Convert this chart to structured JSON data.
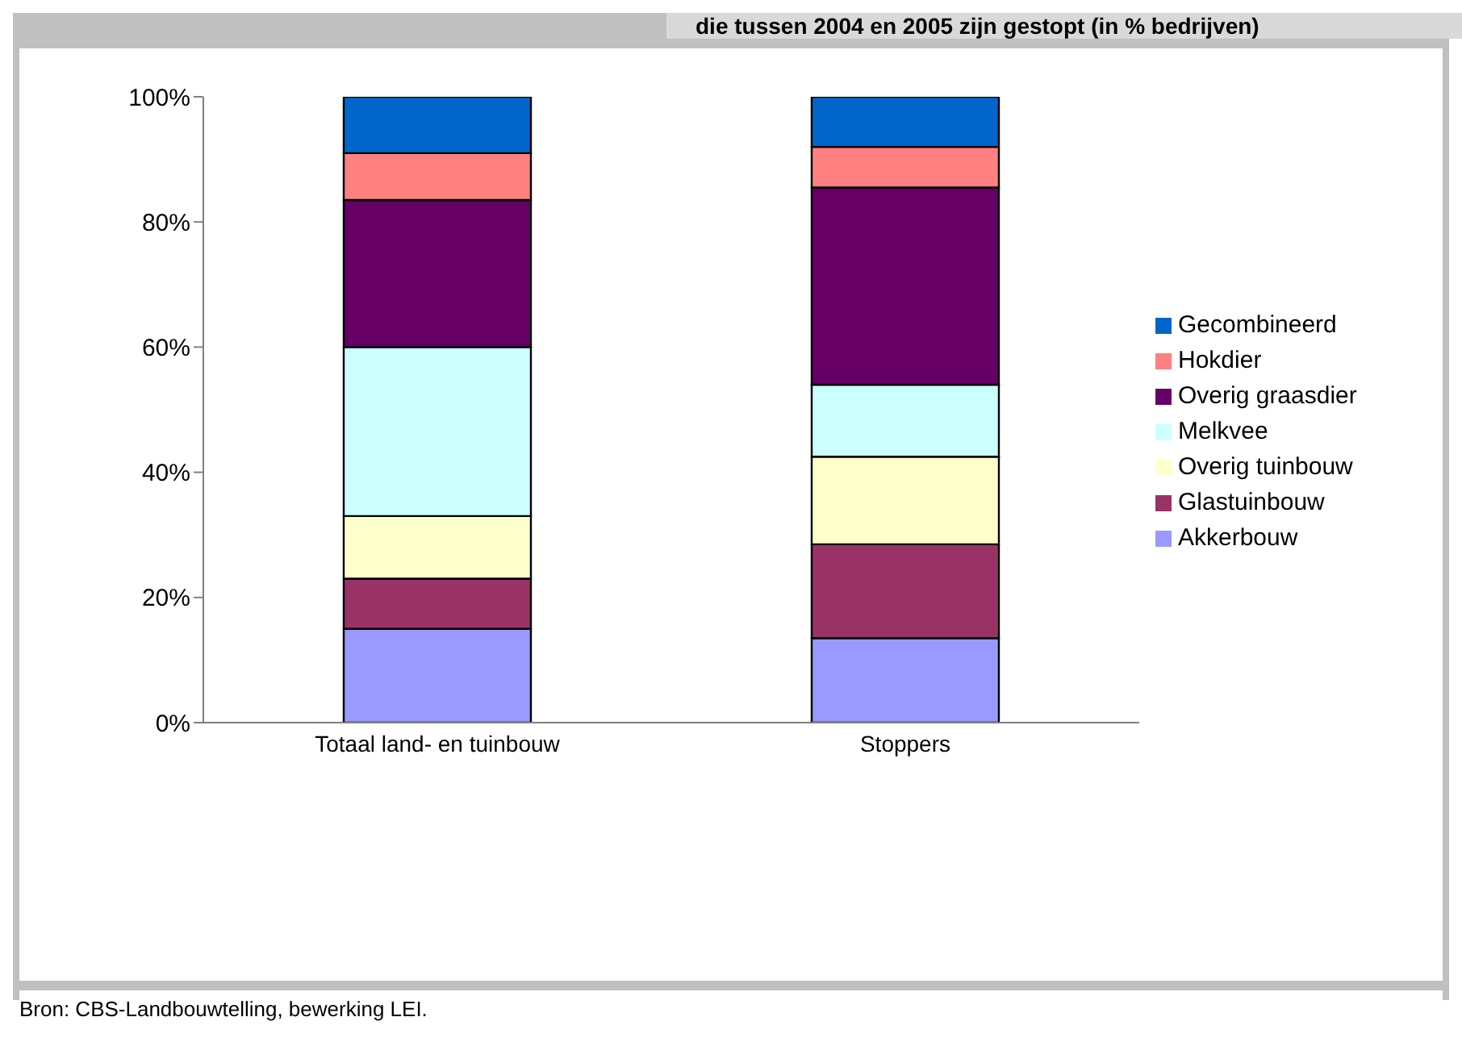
{
  "chart_data": {
    "type": "bar",
    "title": "die tussen 2004 en 2005 zijn gestopt (in % bedrijven)",
    "stacked": true,
    "categories": [
      "Totaal land- en tuinbouw",
      "Stoppers"
    ],
    "series": [
      {
        "name": "Akkerbouw",
        "color": "#9999ff",
        "values": [
          15,
          13.5
        ]
      },
      {
        "name": "Glastuinbouw",
        "color": "#993366",
        "values": [
          8,
          15
        ]
      },
      {
        "name": "Overig tuinbouw",
        "color": "#ffffcc",
        "values": [
          10,
          14
        ]
      },
      {
        "name": "Melkvee",
        "color": "#ccffff",
        "values": [
          27,
          11.5
        ]
      },
      {
        "name": "Overig graasdier",
        "color": "#660066",
        "values": [
          23.5,
          31.5
        ]
      },
      {
        "name": "Hokdier",
        "color": "#ff8080",
        "values": [
          7.5,
          6.5
        ]
      },
      {
        "name": "Gecombineerd",
        "color": "#0066cc",
        "values": [
          9,
          8
        ]
      }
    ],
    "ylim": [
      0,
      100
    ],
    "yticks": [
      {
        "value": 0,
        "label": "0%"
      },
      {
        "value": 20,
        "label": "20%"
      },
      {
        "value": 40,
        "label": "40%"
      },
      {
        "value": 60,
        "label": "60%"
      },
      {
        "value": 80,
        "label": "80%"
      },
      {
        "value": 100,
        "label": "100%"
      }
    ],
    "legend": "right",
    "annotations": [
      "Bron: CBS-Landbouwtelling, bewerking LEI."
    ]
  }
}
